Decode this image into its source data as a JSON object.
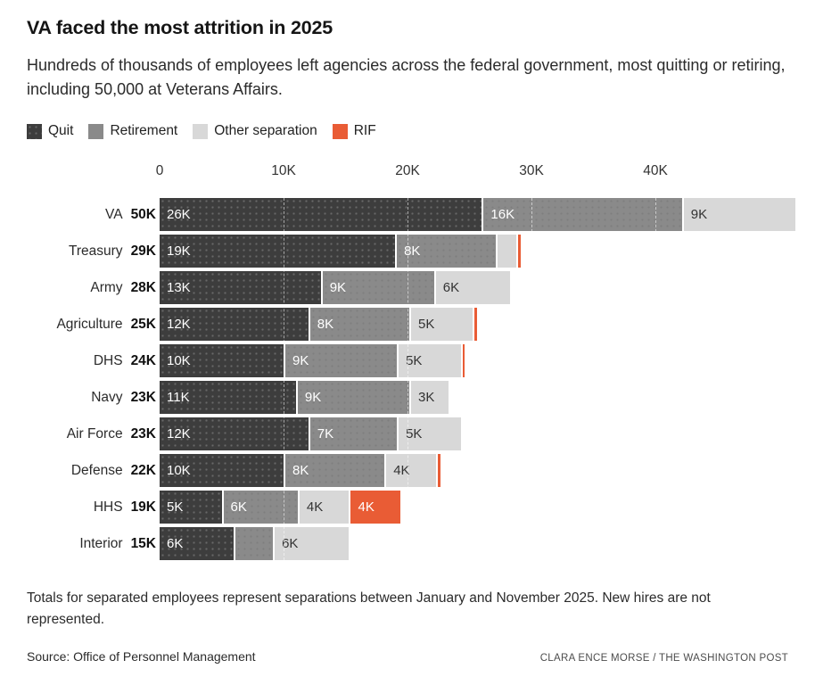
{
  "header": {
    "title": "VA faced the most attrition in 2025",
    "subtitle": "Hundreds of thousands of employees left agencies across the federal government, most quitting or retiring, including 50,000 at Veterans Affairs."
  },
  "legend": [
    {
      "label": "Quit",
      "color": "#3d3d3d"
    },
    {
      "label": "Retirement",
      "color": "#8a8a8a"
    },
    {
      "label": "Other separation",
      "color": "#d8d8d8"
    },
    {
      "label": "RIF",
      "color": "#e95c35"
    }
  ],
  "chart_data": {
    "type": "bar",
    "orientation": "horizontal",
    "stacked": true,
    "title": "VA faced the most attrition in 2025",
    "unit": "thousands of employees",
    "categories": [
      "Quit",
      "Retirement",
      "Other separation",
      "RIF"
    ],
    "axis": {
      "ticks": [
        0,
        10,
        20,
        30,
        40
      ],
      "tick_labels": [
        "0",
        "10K",
        "20K",
        "30K",
        "40K"
      ],
      "xlim": [
        0,
        51
      ],
      "gridlines": [
        10,
        20,
        30,
        40
      ]
    },
    "rows": [
      {
        "agency": "VA",
        "total_label": "50K",
        "segments": [
          {
            "category": "Quit",
            "value": 26,
            "label": "26K"
          },
          {
            "category": "Retirement",
            "value": 16,
            "label": "16K"
          },
          {
            "category": "Other separation",
            "value": 9,
            "label": "9K"
          }
        ]
      },
      {
        "agency": "Treasury",
        "total_label": "29K",
        "segments": [
          {
            "category": "Quit",
            "value": 19,
            "label": "19K"
          },
          {
            "category": "Retirement",
            "value": 8,
            "label": "8K"
          },
          {
            "category": "Other separation",
            "value": 1.5,
            "label": ""
          },
          {
            "category": "RIF",
            "value": 0.2,
            "label": ""
          }
        ]
      },
      {
        "agency": "Army",
        "total_label": "28K",
        "segments": [
          {
            "category": "Quit",
            "value": 13,
            "label": "13K"
          },
          {
            "category": "Retirement",
            "value": 9,
            "label": "9K"
          },
          {
            "category": "Other separation",
            "value": 6,
            "label": "6K"
          }
        ]
      },
      {
        "agency": "Agriculture",
        "total_label": "25K",
        "segments": [
          {
            "category": "Quit",
            "value": 12,
            "label": "12K"
          },
          {
            "category": "Retirement",
            "value": 8,
            "label": "8K"
          },
          {
            "category": "Other separation",
            "value": 5,
            "label": "5K"
          },
          {
            "category": "RIF",
            "value": 0.2,
            "label": ""
          }
        ]
      },
      {
        "agency": "DHS",
        "total_label": "24K",
        "segments": [
          {
            "category": "Quit",
            "value": 10,
            "label": "10K"
          },
          {
            "category": "Retirement",
            "value": 9,
            "label": "9K"
          },
          {
            "category": "Other separation",
            "value": 5,
            "label": "5K"
          },
          {
            "category": "RIF",
            "value": 0.2,
            "label": ""
          }
        ]
      },
      {
        "agency": "Navy",
        "total_label": "23K",
        "segments": [
          {
            "category": "Quit",
            "value": 11,
            "label": "11K"
          },
          {
            "category": "Retirement",
            "value": 9,
            "label": "9K"
          },
          {
            "category": "Other separation",
            "value": 3,
            "label": "3K"
          }
        ]
      },
      {
        "agency": "Air Force",
        "total_label": "23K",
        "segments": [
          {
            "category": "Quit",
            "value": 12,
            "label": "12K"
          },
          {
            "category": "Retirement",
            "value": 7,
            "label": "7K"
          },
          {
            "category": "Other separation",
            "value": 5,
            "label": "5K"
          }
        ]
      },
      {
        "agency": "Defense",
        "total_label": "22K",
        "segments": [
          {
            "category": "Quit",
            "value": 10,
            "label": "10K"
          },
          {
            "category": "Retirement",
            "value": 8,
            "label": "8K"
          },
          {
            "category": "Other separation",
            "value": 4,
            "label": "4K"
          },
          {
            "category": "RIF",
            "value": 0.2,
            "label": ""
          }
        ]
      },
      {
        "agency": "HHS",
        "total_label": "19K",
        "segments": [
          {
            "category": "Quit",
            "value": 5,
            "label": "5K"
          },
          {
            "category": "Retirement",
            "value": 6,
            "label": "6K"
          },
          {
            "category": "Other separation",
            "value": 4,
            "label": "4K"
          },
          {
            "category": "RIF",
            "value": 4,
            "label": "4K"
          }
        ]
      },
      {
        "agency": "Interior",
        "total_label": "15K",
        "segments": [
          {
            "category": "Quit",
            "value": 6,
            "label": "6K"
          },
          {
            "category": "Retirement",
            "value": 3,
            "label": ""
          },
          {
            "category": "Other separation",
            "value": 6,
            "label": "6K"
          }
        ]
      }
    ]
  },
  "footer": {
    "note": "Totals for separated employees represent separations between January and November 2025. New hires are not represented.",
    "source": "Source: Office of Personnel Management",
    "credit": "CLARA ENCE MORSE / THE WASHINGTON POST"
  }
}
